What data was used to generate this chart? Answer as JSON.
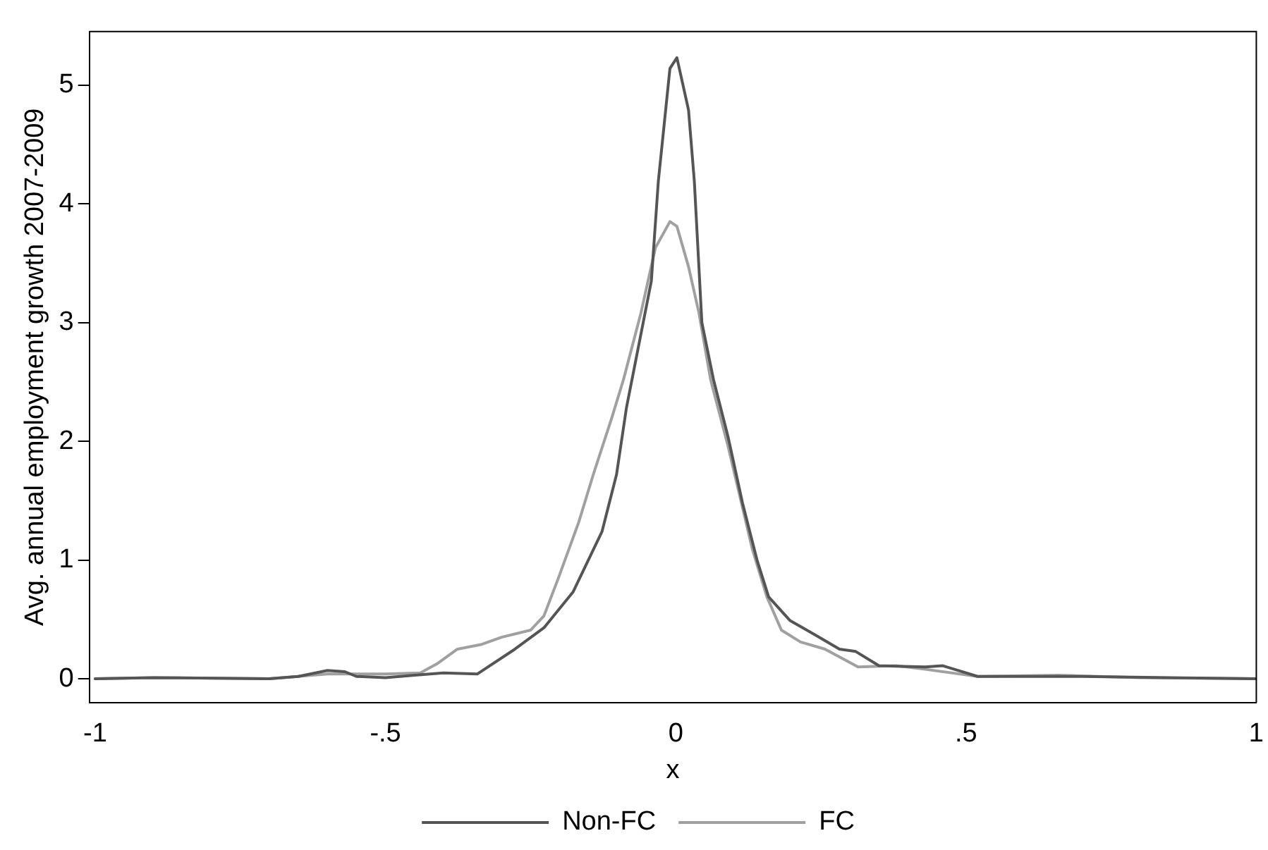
{
  "chart_data": {
    "type": "line",
    "xlabel": "x",
    "ylabel": "Avg. annual employment growth 2007-2009",
    "xlim": [
      -1.01,
      1
    ],
    "ylim": [
      -0.2,
      5.45
    ],
    "xticks": [
      -1,
      {
        "value": -0.5,
        "label": "-.5"
      },
      0,
      {
        "value": 0.5,
        "label": ".5"
      },
      1
    ],
    "yticks": [
      0,
      1,
      2,
      3,
      4,
      5
    ],
    "grid": false,
    "legend": "bottom",
    "marker": "none",
    "line_style": "solid",
    "series": [
      {
        "name": "Non-FC",
        "color": "#555555",
        "x": [
          -1,
          -0.9,
          -0.7,
          -0.65,
          -0.6,
          -0.57,
          -0.55,
          -0.5,
          -0.45,
          -0.4,
          -0.342,
          -0.277,
          -0.227,
          -0.177,
          -0.127,
          -0.102,
          -0.085,
          -0.042,
          -0.03,
          -0.01,
          0.002,
          0.022,
          0.032,
          0.045,
          0.065,
          0.09,
          0.115,
          0.14,
          0.16,
          0.197,
          0.24,
          0.282,
          0.31,
          0.35,
          0.43,
          0.46,
          0.5,
          0.52,
          0.7,
          0.85,
          1
        ],
        "values": [
          0,
          0.01,
          0,
          0.02,
          0.07,
          0.06,
          0.02,
          0.01,
          0.03,
          0.05,
          0.04,
          0.25,
          0.43,
          0.73,
          1.24,
          1.72,
          2.28,
          3.35,
          4.19,
          5.14,
          5.23,
          4.79,
          4.19,
          3.0,
          2.52,
          2.04,
          1.48,
          1.0,
          0.69,
          0.49,
          0.37,
          0.25,
          0.23,
          0.11,
          0.1,
          0.11,
          0.05,
          0.02,
          0.02,
          0.01,
          0
        ]
      },
      {
        "name": "FC",
        "color": "#a0a0a0",
        "x": [
          -1,
          -0.9,
          -0.7,
          -0.6,
          -0.5,
          -0.44,
          -0.41,
          -0.376,
          -0.334,
          -0.3,
          -0.25,
          -0.227,
          -0.202,
          -0.167,
          -0.142,
          -0.11,
          -0.09,
          -0.06,
          -0.035,
          -0.01,
          0.002,
          0.022,
          0.04,
          0.06,
          0.09,
          0.132,
          0.157,
          0.182,
          0.215,
          0.257,
          0.314,
          0.38,
          0.43,
          0.52,
          0.66,
          0.8,
          1
        ],
        "values": [
          0,
          0.01,
          0,
          0.04,
          0.04,
          0.05,
          0.13,
          0.25,
          0.29,
          0.35,
          0.41,
          0.53,
          0.85,
          1.32,
          1.72,
          2.2,
          2.52,
          3.08,
          3.63,
          3.85,
          3.81,
          3.47,
          3.08,
          2.52,
          1.96,
          1.09,
          0.69,
          0.41,
          0.31,
          0.25,
          0.1,
          0.11,
          0.08,
          0.02,
          0.03,
          0.01,
          0
        ]
      }
    ]
  }
}
